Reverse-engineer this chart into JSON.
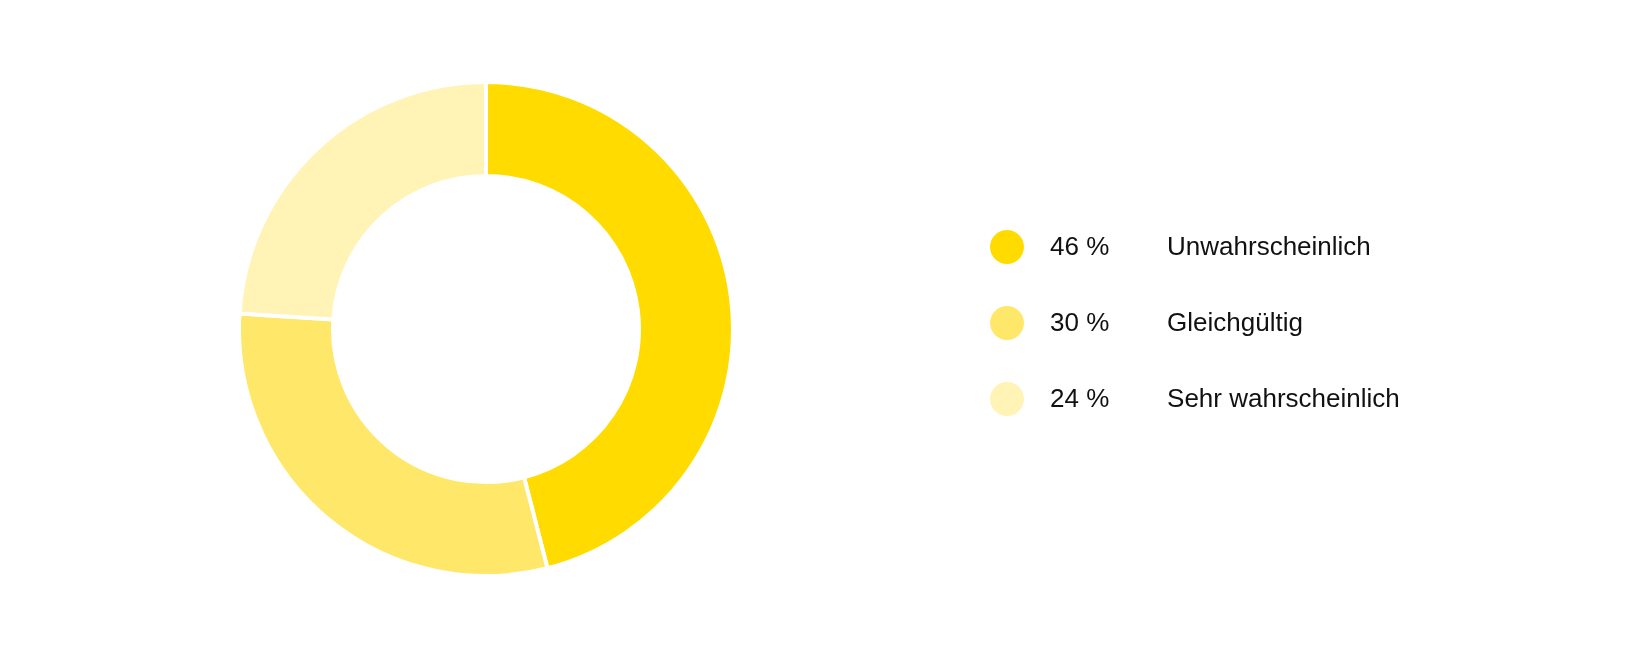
{
  "chart_data": {
    "type": "donut",
    "categories": [
      "Unwahrscheinlich",
      "Gleichgültig",
      "Sehr wahrscheinlich"
    ],
    "values": [
      46,
      30,
      24
    ],
    "colors": [
      "#ffdb00",
      "#ffe76a",
      "#fff3b5"
    ],
    "value_labels": [
      "46 %",
      "30 %",
      "24 %"
    ],
    "legend": "right"
  }
}
